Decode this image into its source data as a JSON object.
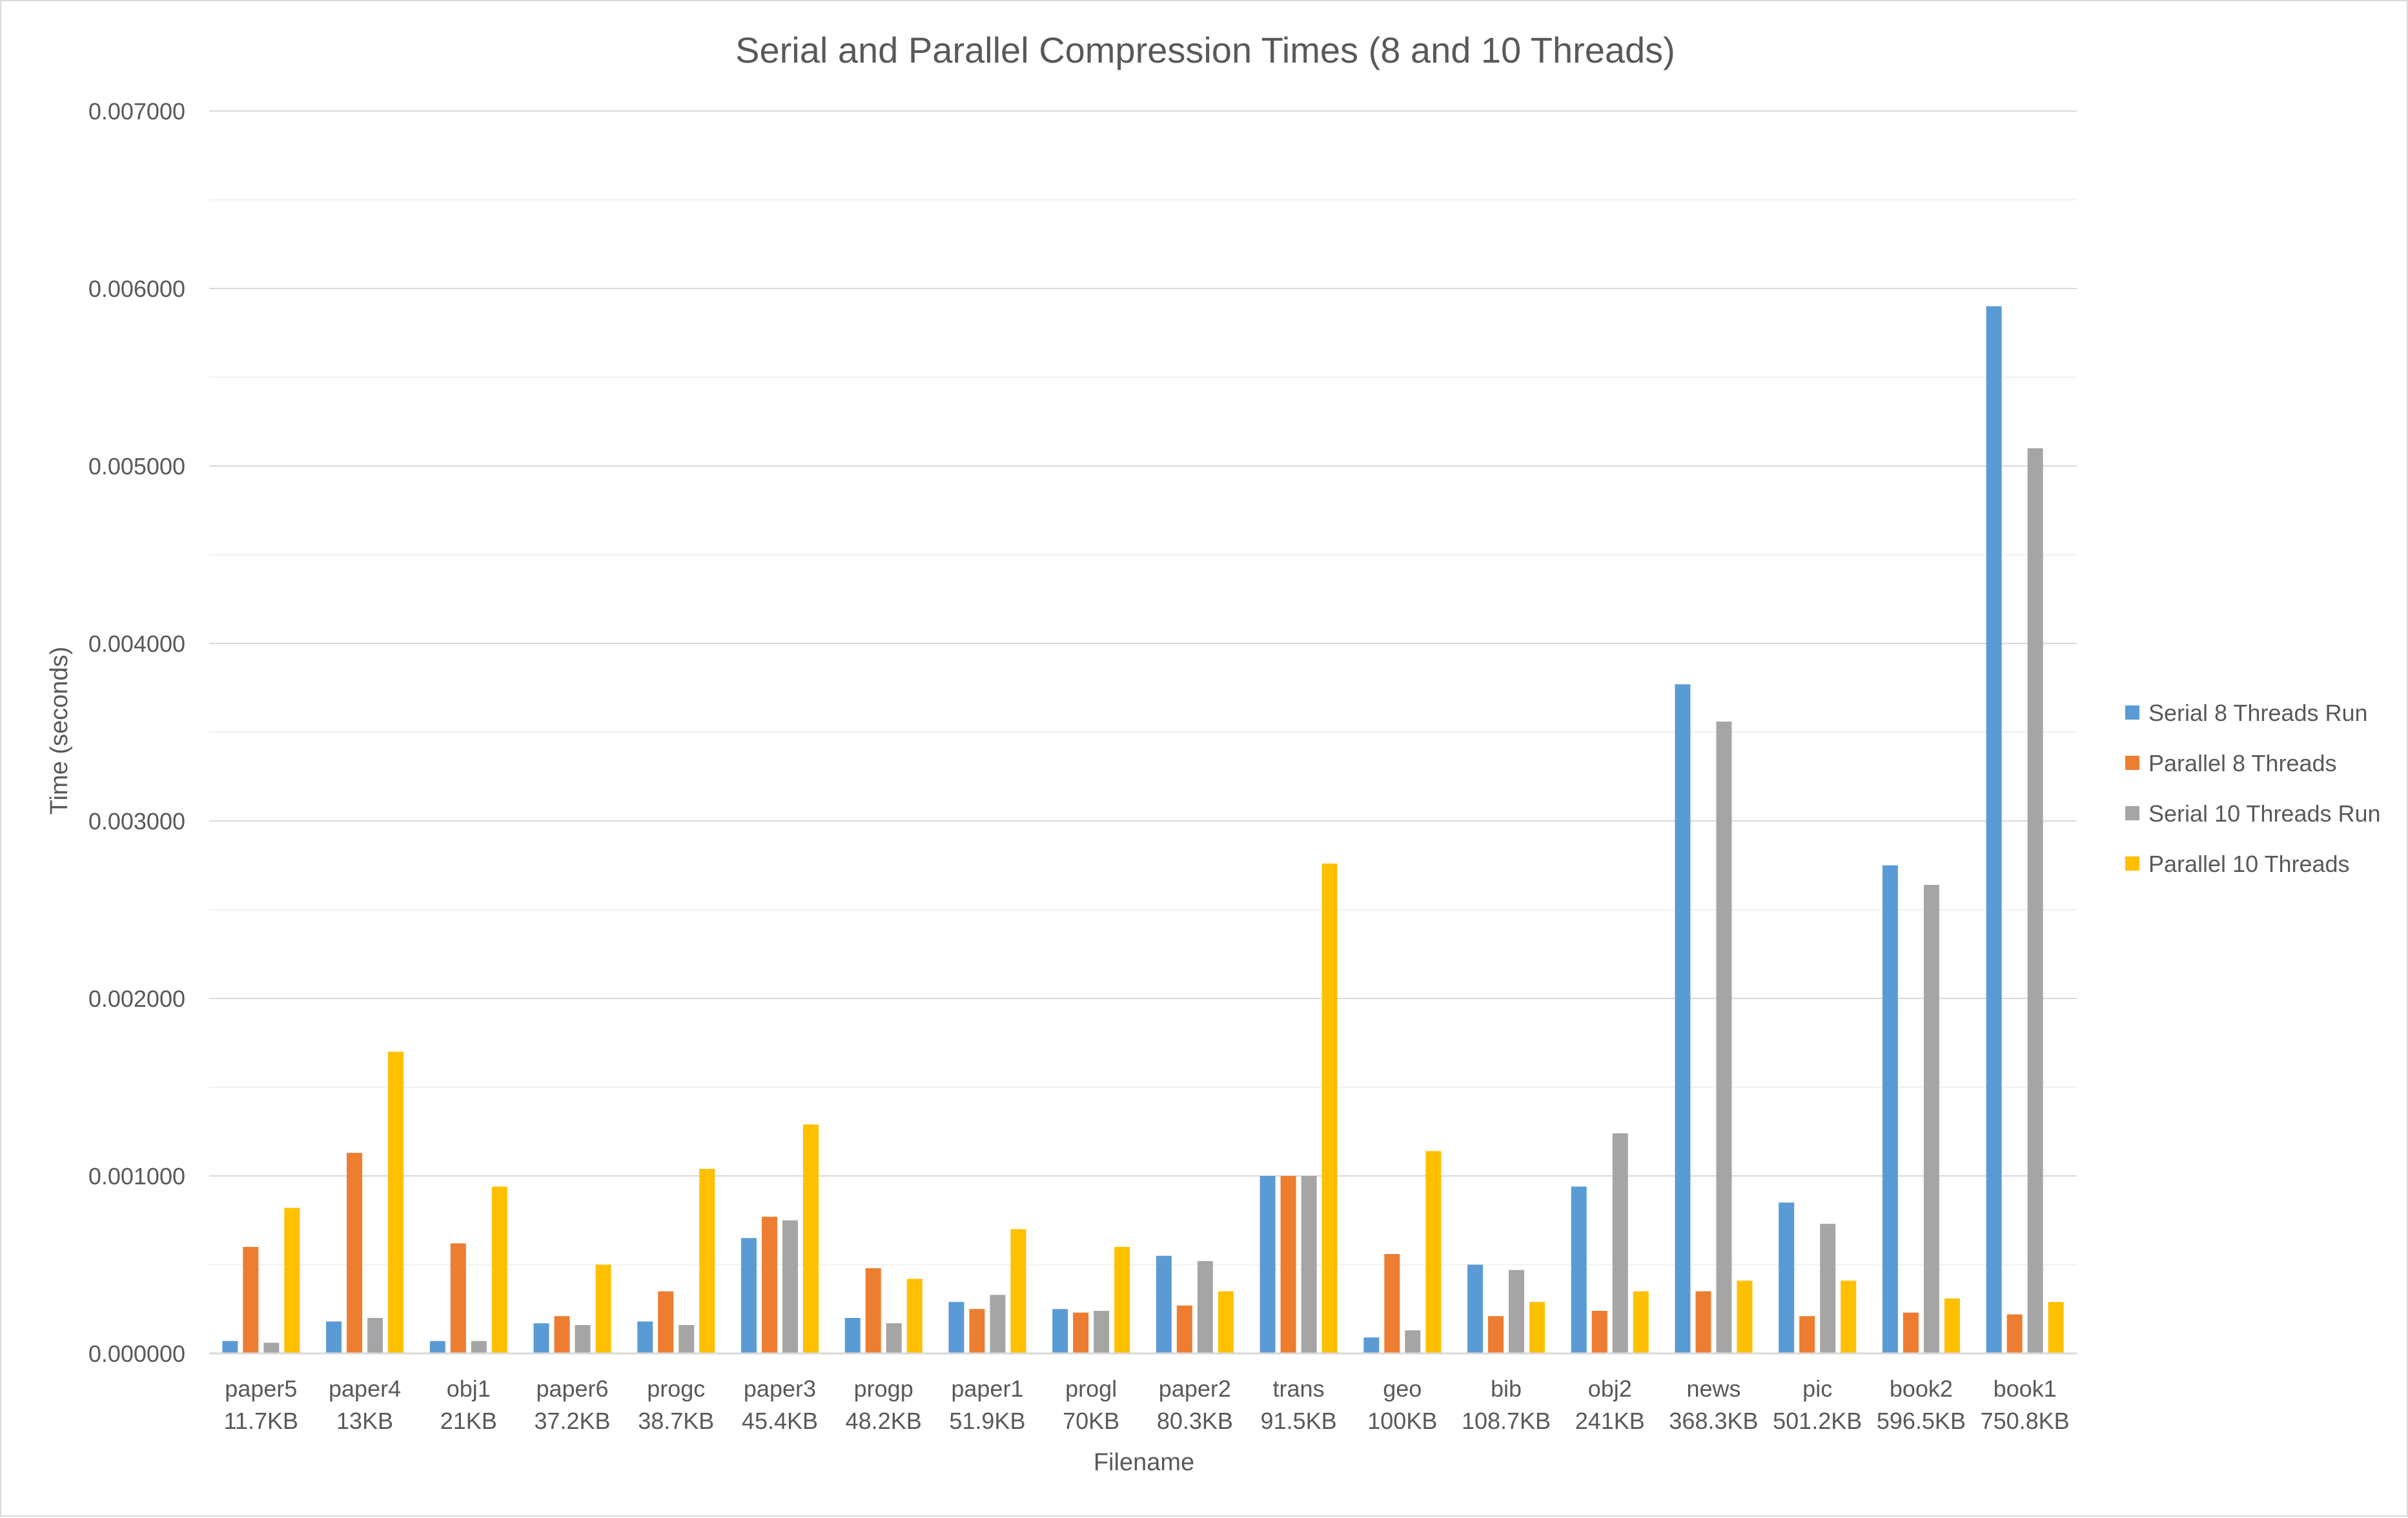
{
  "chart_data": {
    "type": "bar",
    "title": "Serial and Parallel Compression Times (8 and 10 Threads)",
    "xlabel": "Filename",
    "ylabel": "Time (seconds)",
    "ylim": [
      0,
      0.007
    ],
    "ytick_labels": [
      "0.000000",
      "0.001000",
      "0.002000",
      "0.003000",
      "0.004000",
      "0.005000",
      "0.006000",
      "0.007000"
    ],
    "categories": [
      {
        "name": "paper5",
        "size": "11.7KB"
      },
      {
        "name": "paper4",
        "size": "13KB"
      },
      {
        "name": "obj1",
        "size": "21KB"
      },
      {
        "name": "paper6",
        "size": "37.2KB"
      },
      {
        "name": "progc",
        "size": "38.7KB"
      },
      {
        "name": "paper3",
        "size": "45.4KB"
      },
      {
        "name": "progp",
        "size": "48.2KB"
      },
      {
        "name": "paper1",
        "size": "51.9KB"
      },
      {
        "name": "progl",
        "size": "70KB"
      },
      {
        "name": "paper2",
        "size": "80.3KB"
      },
      {
        "name": "trans",
        "size": "91.5KB"
      },
      {
        "name": "geo",
        "size": "100KB"
      },
      {
        "name": "bib",
        "size": "108.7KB"
      },
      {
        "name": "obj2",
        "size": "241KB"
      },
      {
        "name": "news",
        "size": "368.3KB"
      },
      {
        "name": "pic",
        "size": "501.2KB"
      },
      {
        "name": "book2",
        "size": "596.5KB"
      },
      {
        "name": "book1",
        "size": "750.8KB"
      }
    ],
    "series": [
      {
        "name": "Serial 8 Threads Run",
        "color": "#5b9bd5",
        "values": [
          7e-05,
          0.00018,
          7e-05,
          0.00017,
          0.00018,
          0.00065,
          0.0002,
          0.00029,
          0.00025,
          0.00055,
          0.001,
          9e-05,
          0.0005,
          0.00094,
          0.00377,
          0.00085,
          0.00275,
          0.0059
        ]
      },
      {
        "name": "Parallel 8 Threads",
        "color": "#ed7d31",
        "values": [
          0.0006,
          0.00113,
          0.00062,
          0.00021,
          0.00035,
          0.00077,
          0.00048,
          0.00025,
          0.00023,
          0.00027,
          0.001,
          0.00056,
          0.00021,
          0.00024,
          0.00035,
          0.00021,
          0.00023,
          0.00022
        ]
      },
      {
        "name": "Serial 10 Threads Run",
        "color": "#a5a5a5",
        "values": [
          6e-05,
          0.0002,
          7e-05,
          0.00016,
          0.00016,
          0.00075,
          0.00017,
          0.00033,
          0.00024,
          0.00052,
          0.001,
          0.00013,
          0.00047,
          0.00124,
          0.00356,
          0.00073,
          0.00264,
          0.0051
        ]
      },
      {
        "name": "Parallel 10 Threads",
        "color": "#ffc000",
        "values": [
          0.00082,
          0.0017,
          0.00094,
          0.0005,
          0.00104,
          0.00129,
          0.00042,
          0.0007,
          0.0006,
          0.00035,
          0.00276,
          0.00114,
          0.00029,
          0.00035,
          0.00041,
          0.00041,
          0.00031,
          0.00029
        ]
      }
    ],
    "grid": true,
    "legend_position": "right"
  }
}
